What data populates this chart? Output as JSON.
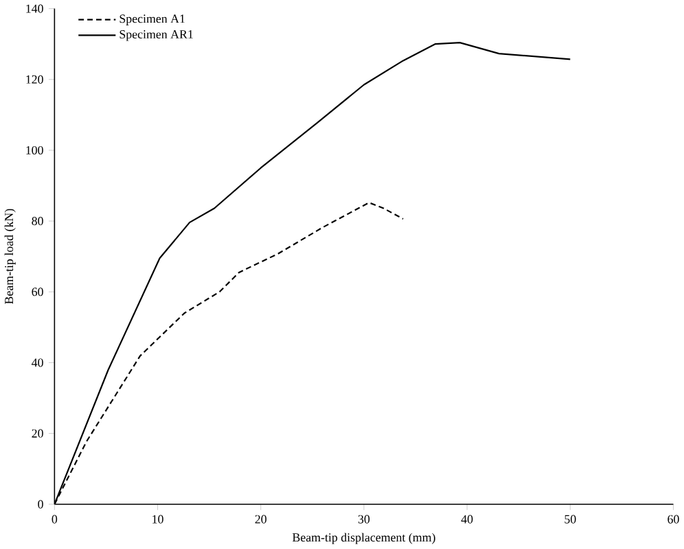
{
  "chart_data": {
    "type": "line",
    "xlabel": "Beam-tip displacement (mm)",
    "ylabel": "Beam-tip load (kN)",
    "xlim": [
      0,
      60
    ],
    "xticks": [
      0,
      10,
      20,
      30,
      40,
      50,
      60
    ],
    "ylim": [
      0,
      140
    ],
    "yticks": [
      0,
      20,
      40,
      60,
      80,
      100,
      120,
      140
    ],
    "legend": "top left",
    "grid": false,
    "series": [
      {
        "name": "Specimen A1",
        "color": "#000000",
        "line_style": "dashed",
        "x": [
          0,
          3.1,
          8.3,
          12.6,
          16,
          17.9,
          21.7,
          26,
          30.5,
          31.9,
          33.8
        ],
        "values": [
          0,
          17.7,
          41.9,
          54,
          60,
          65.5,
          70.8,
          78.2,
          85.2,
          83.6,
          80.6
        ]
      },
      {
        "name": "Specimen AR1",
        "color": "#000000",
        "line_style": "solid",
        "x": [
          0,
          5.2,
          10.2,
          13.1,
          15.5,
          20,
          25.5,
          30,
          33.8,
          36.9,
          39.3,
          43.1,
          50
        ],
        "values": [
          0,
          37.9,
          69.5,
          79.6,
          83.6,
          95,
          107.8,
          118.5,
          125.3,
          130,
          130.4,
          127.3,
          125.7
        ]
      }
    ]
  }
}
